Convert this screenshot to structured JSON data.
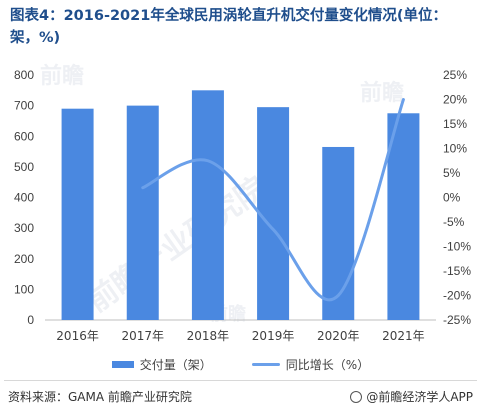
{
  "title": "图表4：2016-2021年全球民用涡轮直升机交付量变化情况(单位：架，%)",
  "chart_data": {
    "type": "bar",
    "categories": [
      "2016年",
      "2017年",
      "2018年",
      "2019年",
      "2020年",
      "2021年"
    ],
    "series": [
      {
        "name": "交付量（架）",
        "type": "bar",
        "axis": "left",
        "values": [
          690,
          700,
          750,
          695,
          565,
          675
        ]
      },
      {
        "name": "同比增长（%）",
        "type": "line",
        "axis": "right",
        "values": [
          null,
          2,
          7.5,
          -6.5,
          -20,
          20
        ]
      }
    ],
    "ylim_left": [
      0,
      800
    ],
    "ylim_right": [
      -25,
      25
    ],
    "left_ticks": [
      "0",
      "100",
      "200",
      "300",
      "400",
      "500",
      "600",
      "700",
      "800"
    ],
    "right_ticks": [
      "-25%",
      "-20%",
      "-15%",
      "-10%",
      "-5%",
      "0%",
      "5%",
      "10%",
      "15%",
      "20%",
      "25%"
    ],
    "legend_position": "bottom",
    "grid": false,
    "colors": {
      "bar": "#4a88e0",
      "line": "#6ba0ea"
    }
  },
  "legend": {
    "bar_label": "交付量（架）",
    "line_label": "同比增长（%）"
  },
  "footer": {
    "source": "资料来源：GAMA 前瞻产业研究院",
    "brand": "@前瞻经济学人APP"
  },
  "watermarks": [
    "前瞻",
    "前瞻产业研究院",
    "前瞻",
    "前瞻"
  ]
}
